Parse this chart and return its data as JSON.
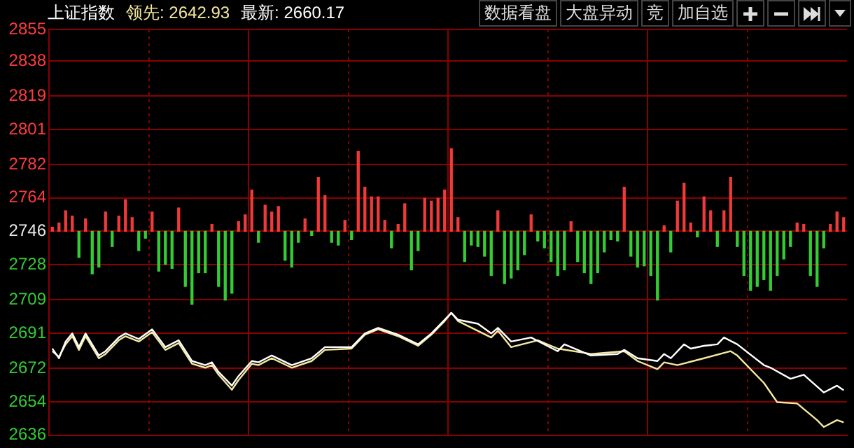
{
  "chart_data": {
    "type": "line",
    "title": "上证指数",
    "annotations": [
      "领先: 2642.93",
      "最新: 2660.17",
      "数据看盘",
      "大盘异动",
      "竞",
      "加自选"
    ],
    "categories": [
      null,
      null,
      null,
      null,
      null,
      null,
      null,
      null,
      null,
      null,
      null,
      null,
      null,
      null,
      null,
      null,
      null,
      null,
      null,
      null,
      null,
      null,
      null,
      null,
      null,
      null,
      null,
      null,
      null,
      null,
      null,
      null,
      null,
      null,
      null,
      null,
      null,
      null,
      null,
      null,
      null,
      null,
      null,
      null,
      null,
      null,
      null,
      null,
      null,
      null,
      null,
      null,
      null,
      null,
      null,
      null,
      null,
      null,
      null,
      null,
      null,
      null,
      null,
      null,
      null,
      null,
      null,
      null,
      null,
      null,
      null,
      null,
      null,
      null,
      null,
      null,
      null,
      null,
      null,
      null,
      null,
      null,
      null,
      null,
      null,
      null,
      null,
      null,
      null,
      null,
      null,
      null,
      null,
      null,
      null,
      null,
      null,
      null,
      null,
      null,
      null,
      null,
      null,
      null,
      null,
      null,
      null,
      null,
      null,
      null,
      null,
      null,
      null,
      null,
      null,
      null,
      null,
      null,
      null,
      null
    ],
    "ylim": [
      2636,
      2855
    ],
    "yticks": [
      2636,
      2654,
      2672,
      2691,
      2709,
      2728,
      2746,
      2764,
      2782,
      2801,
      2819,
      2838,
      2855
    ],
    "grid": true,
    "tick_labels": "y",
    "marker": "none",
    "line_style": "solid",
    "series": [
      {
        "type": "bar",
        "base": [
          2746,
          2746,
          2746,
          2746,
          2746,
          2746,
          2746,
          2746,
          2746,
          2746,
          2746,
          2746,
          2746,
          2746,
          2746,
          2746,
          2746,
          2746,
          2746,
          2746,
          2746,
          2746,
          2746,
          2746,
          2746,
          2746,
          2746,
          2746,
          2746,
          2746,
          2746,
          2746,
          2746,
          2746,
          2746,
          2746,
          2746,
          2746,
          2746,
          2746,
          2746,
          2746,
          2746,
          2746,
          2746,
          2746,
          2746,
          2746,
          2746,
          2746,
          2746,
          2746,
          2746,
          2746,
          2746,
          2746,
          2746,
          2746,
          2746,
          2746,
          2746,
          2746,
          2746,
          2746,
          2746,
          2746,
          2746,
          2746,
          2746,
          2746,
          2746,
          2746,
          2746,
          2746,
          2746,
          2746,
          2746,
          2746,
          2746,
          2746,
          2746,
          2746,
          2746,
          2746,
          2746,
          2746,
          2746,
          2746,
          2746,
          2746,
          2746,
          2746,
          2746,
          2746,
          2746,
          2746,
          2746,
          2746,
          2746,
          2746,
          2746,
          2746,
          2746,
          2746,
          2746,
          2746,
          2746,
          2746,
          2746,
          2746,
          2746,
          2746,
          2746,
          2746,
          2746,
          2746,
          2746,
          2746,
          2746,
          2746
        ],
        "values": [
          2.2,
          4.5,
          11.1,
          8.2,
          -14.1,
          6.7,
          -23.0,
          -19.3,
          10.4,
          -8.2,
          8.2,
          17.1,
          7.4,
          -10.4,
          -3.7,
          10.4,
          -21.5,
          -17.8,
          -20.0,
          12.6,
          -29.7,
          -39.4,
          -22.3,
          -22.3,
          3.7,
          -29.7,
          -37.1,
          -33.4,
          5.2,
          8.9,
          22.3,
          -5.9,
          14.1,
          10.4,
          13.4,
          -15.6,
          -19.3,
          -5.9,
          6.7,
          -2.2,
          29.0,
          19.3,
          -5.9,
          -7.4,
          5.9,
          -4.5,
          43.1,
          23.8,
          18.6,
          18.6,
          5.9,
          -8.9,
          3.7,
          14.9,
          -20.8,
          -10.4,
          17.8,
          16.3,
          17.8,
          22.3,
          44.6,
          7.4,
          -16.3,
          -7.4,
          -8.2,
          -13.4,
          -23.8,
          11.1,
          -28.2,
          -25.2,
          -20.8,
          -12.6,
          8.9,
          -5.2,
          -8.9,
          -16.3,
          -23.8,
          -20.8,
          5.2,
          -16.3,
          -22.3,
          -28.2,
          -22.3,
          -11.1,
          -4.5,
          -5.2,
          23.8,
          -13.4,
          -19.3,
          -18.6,
          -23.8,
          -37.1,
          3.0,
          -11.1,
          16.3,
          26.0,
          4.5,
          -3.0,
          18.6,
          11.1,
          -8.2,
          11.1,
          29.0,
          -8.2,
          -23.8,
          -31.9,
          -29.7,
          -26.0,
          -31.9,
          -23.8,
          -14.9,
          -8.2,
          4.5,
          3.7,
          -23.8,
          -29.7,
          -8.9,
          3.7,
          10.4,
          7.4
        ],
        "colors": [
          "#f03a3a",
          "#f03a3a",
          "#f03a3a",
          "#f03a3a",
          "#33cc33",
          "#f03a3a",
          "#33cc33",
          "#33cc33",
          "#f03a3a",
          "#33cc33",
          "#f03a3a",
          "#f03a3a",
          "#f03a3a",
          "#33cc33",
          "#33cc33",
          "#f03a3a",
          "#33cc33",
          "#33cc33",
          "#33cc33",
          "#f03a3a",
          "#33cc33",
          "#33cc33",
          "#33cc33",
          "#33cc33",
          "#f03a3a",
          "#33cc33",
          "#33cc33",
          "#33cc33",
          "#f03a3a",
          "#f03a3a",
          "#f03a3a",
          "#33cc33",
          "#f03a3a",
          "#f03a3a",
          "#f03a3a",
          "#33cc33",
          "#33cc33",
          "#33cc33",
          "#f03a3a",
          "#33cc33",
          "#f03a3a",
          "#f03a3a",
          "#33cc33",
          "#33cc33",
          "#f03a3a",
          "#33cc33",
          "#f03a3a",
          "#f03a3a",
          "#f03a3a",
          "#f03a3a",
          "#f03a3a",
          "#33cc33",
          "#f03a3a",
          "#f03a3a",
          "#33cc33",
          "#33cc33",
          "#f03a3a",
          "#f03a3a",
          "#f03a3a",
          "#f03a3a",
          "#f03a3a",
          "#f03a3a",
          "#33cc33",
          "#33cc33",
          "#33cc33",
          "#33cc33",
          "#33cc33",
          "#f03a3a",
          "#33cc33",
          "#33cc33",
          "#33cc33",
          "#33cc33",
          "#f03a3a",
          "#33cc33",
          "#33cc33",
          "#33cc33",
          "#33cc33",
          "#33cc33",
          "#f03a3a",
          "#33cc33",
          "#33cc33",
          "#33cc33",
          "#33cc33",
          "#33cc33",
          "#33cc33",
          "#33cc33",
          "#f03a3a",
          "#33cc33",
          "#33cc33",
          "#33cc33",
          "#33cc33",
          "#33cc33",
          "#f03a3a",
          "#33cc33",
          "#f03a3a",
          "#f03a3a",
          "#f03a3a",
          "#33cc33",
          "#f03a3a",
          "#f03a3a",
          "#33cc33",
          "#f03a3a",
          "#f03a3a",
          "#33cc33",
          "#33cc33",
          "#33cc33",
          "#33cc33",
          "#33cc33",
          "#33cc33",
          "#33cc33",
          "#33cc33",
          "#33cc33",
          "#f03a3a",
          "#f03a3a",
          "#33cc33",
          "#33cc33",
          "#33cc33",
          "#f03a3a",
          "#f03a3a",
          "#f03a3a"
        ]
      },
      {
        "color": "#ffffff",
        "values": [
          2682.7,
          2677.5,
          2686.5,
          2690.9,
          2683.5,
          2690.9,
          null,
          2679.0,
          2681.3,
          null,
          2688.7,
          2690.9,
          null,
          2687.9,
          null,
          2693.1,
          null,
          2683.5,
          null,
          2687.2,
          null,
          2676.0,
          null,
          2673.8,
          2675.3,
          2670.1,
          null,
          2662.7,
          2667.9,
          null,
          2676.0,
          2675.3,
          null,
          2679.0,
          null,
          null,
          2673.8,
          null,
          null,
          2677.5,
          null,
          2683.5,
          null,
          null,
          null,
          2683.5,
          null,
          2690.9,
          null,
          2693.9,
          null,
          null,
          2690.2,
          null,
          null,
          2685.0,
          null,
          2690.9,
          null,
          2698.3,
          2702.0,
          2698.3,
          null,
          null,
          2696.1,
          null,
          2690.9,
          2693.9,
          null,
          2686.5,
          null,
          null,
          2688.7,
          null,
          null,
          null,
          2681.3,
          2685.0,
          null,
          null,
          null,
          2679.0,
          null,
          null,
          null,
          2679.8,
          2682.0,
          null,
          2677.5,
          null,
          null,
          2676.0,
          2679.8,
          2677.5,
          null,
          2685.0,
          2682.7,
          null,
          2684.2,
          null,
          2685.0,
          2688.7,
          null,
          2685.0,
          null,
          null,
          null,
          2673.8,
          2672.4,
          null,
          null,
          2666.4,
          null,
          2668.6,
          null,
          null,
          2659.0,
          null,
          2662.7,
          2660.2
        ]
      },
      {
        "color": "#f5e9a0",
        "values": [
          2681.3,
          2678.3,
          2685.0,
          2689.4,
          2682.0,
          2689.4,
          null,
          2677.5,
          2679.8,
          null,
          2687.2,
          2689.4,
          null,
          2686.5,
          null,
          2691.6,
          null,
          2682.0,
          null,
          2685.7,
          null,
          2674.5,
          null,
          2672.4,
          2673.8,
          2668.6,
          null,
          2660.5,
          2665.7,
          null,
          2674.5,
          2673.8,
          null,
          2677.5,
          null,
          null,
          2672.4,
          null,
          null,
          2676.0,
          null,
          2682.0,
          null,
          null,
          null,
          2682.7,
          null,
          2690.2,
          null,
          2693.1,
          null,
          null,
          2689.4,
          null,
          null,
          2684.2,
          null,
          2690.2,
          null,
          2697.6,
          2702.0,
          2697.6,
          null,
          null,
          null,
          null,
          2688.7,
          2692.4,
          null,
          2683.5,
          null,
          null,
          null,
          2687.2,
          null,
          null,
          2682.7,
          null,
          null,
          null,
          null,
          2679.8,
          null,
          null,
          null,
          null,
          2681.3,
          null,
          2676.0,
          null,
          null,
          2671.6,
          2675.3,
          null,
          2673.8,
          null,
          null,
          null,
          2677.5,
          null,
          null,
          null,
          2681.3,
          2679.0,
          null,
          null,
          null,
          2664.2,
          null,
          2653.8,
          null,
          null,
          2653.1,
          null,
          null,
          2644.1,
          2640.4,
          null,
          2644.1,
          2642.9
        ]
      }
    ]
  }
}
